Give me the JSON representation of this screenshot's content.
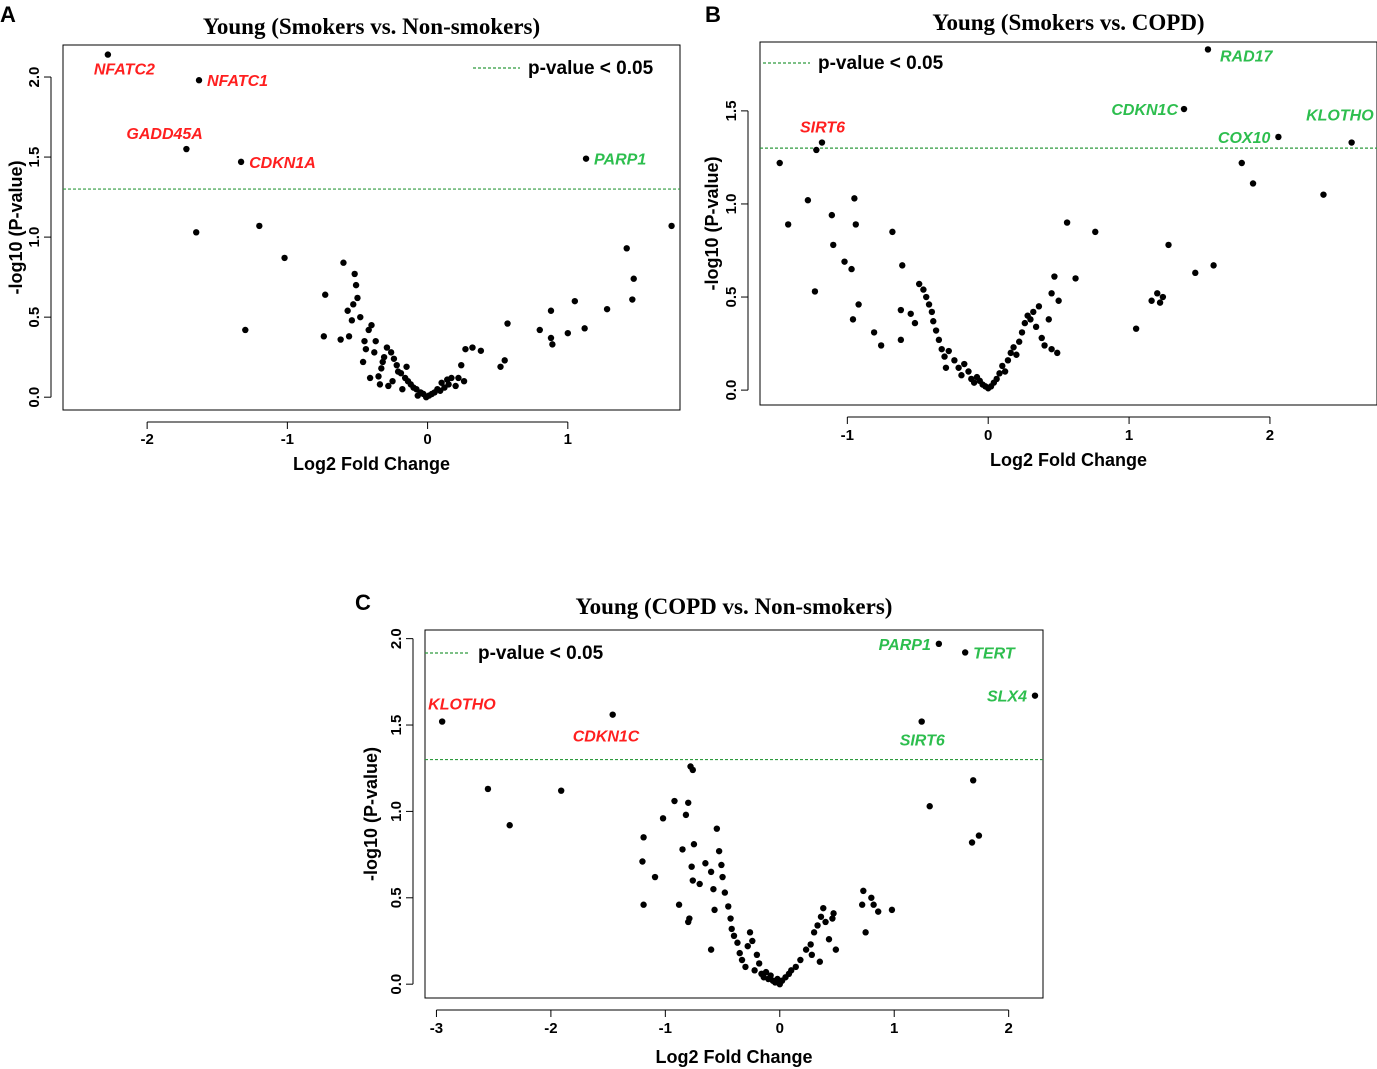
{
  "colors": {
    "down": "#ff1f1f",
    "up": "#2dbe4e",
    "threshold": "#2e9a3e",
    "point": "#000000",
    "frame": "#000000"
  },
  "chart_data": [
    {
      "panel": "A",
      "type": "scatter",
      "title": "Young (Smokers vs. Non-smokers)",
      "xlabel": "Log2 Fold Change",
      "ylabel": "-log10 (P-value)",
      "xticks": [
        "-2",
        "-1",
        "0",
        "1"
      ],
      "yticks": [
        "0.0",
        "0.5",
        "1.0",
        "1.5",
        "2.0"
      ],
      "xlim": [
        -2.6,
        1.8
      ],
      "ylim": [
        -0.08,
        2.2
      ],
      "threshold": 1.3,
      "legend": "p-value < 0.05",
      "legend_position": "top-right",
      "labels": [
        {
          "text": "NFATC2",
          "x": -2.28,
          "y": 2.14,
          "dir": "down"
        },
        {
          "text": "NFATC1",
          "x": -1.63,
          "y": 1.98,
          "dir": "down"
        },
        {
          "text": "GADD45A",
          "x": -1.72,
          "y": 1.55,
          "dir": "down"
        },
        {
          "text": "CDKN1A",
          "x": -1.33,
          "y": 1.47,
          "dir": "down"
        },
        {
          "text": "PARP1",
          "x": 1.13,
          "y": 1.49,
          "dir": "up"
        }
      ],
      "points": [
        [
          -2.28,
          2.14
        ],
        [
          -1.63,
          1.98
        ],
        [
          -1.72,
          1.55
        ],
        [
          -1.33,
          1.47
        ],
        [
          1.13,
          1.49
        ],
        [
          -1.65,
          1.03
        ],
        [
          -1.2,
          1.07
        ],
        [
          -1.02,
          0.87
        ],
        [
          -1.3,
          0.42
        ],
        [
          1.74,
          1.07
        ],
        [
          1.42,
          0.93
        ],
        [
          1.47,
          0.74
        ],
        [
          1.46,
          0.61
        ],
        [
          1.28,
          0.55
        ],
        [
          1.05,
          0.6
        ],
        [
          1.12,
          0.43
        ],
        [
          0.88,
          0.54
        ],
        [
          0.88,
          0.37
        ],
        [
          0.8,
          0.42
        ],
        [
          0.89,
          0.33
        ],
        [
          1.0,
          0.4
        ],
        [
          0.57,
          0.46
        ],
        [
          0.55,
          0.23
        ],
        [
          0.52,
          0.19
        ],
        [
          0.38,
          0.29
        ],
        [
          0.32,
          0.31
        ],
        [
          0.27,
          0.3
        ],
        [
          0.24,
          0.2
        ],
        [
          0.26,
          0.1
        ],
        [
          0.2,
          0.07
        ],
        [
          0.17,
          0.12
        ],
        [
          0.14,
          0.11
        ],
        [
          0.12,
          0.06
        ],
        [
          0.1,
          0.09
        ],
        [
          0.07,
          0.05
        ],
        [
          0.05,
          0.03
        ],
        [
          0.03,
          0.02
        ],
        [
          0.01,
          0.01
        ],
        [
          -0.01,
          0.0
        ],
        [
          -0.03,
          0.02
        ],
        [
          -0.05,
          0.03
        ],
        [
          -0.08,
          0.05
        ],
        [
          -0.1,
          0.06
        ],
        [
          -0.12,
          0.08
        ],
        [
          -0.14,
          0.1
        ],
        [
          -0.16,
          0.12
        ],
        [
          -0.19,
          0.15
        ],
        [
          -0.22,
          0.2
        ],
        [
          -0.24,
          0.24
        ],
        [
          -0.26,
          0.28
        ],
        [
          -0.29,
          0.31
        ],
        [
          -0.31,
          0.25
        ],
        [
          -0.33,
          0.18
        ],
        [
          -0.35,
          0.13
        ],
        [
          -0.37,
          0.35
        ],
        [
          -0.4,
          0.45
        ],
        [
          -0.42,
          0.42
        ],
        [
          -0.44,
          0.3
        ],
        [
          -0.46,
          0.22
        ],
        [
          -0.48,
          0.5
        ],
        [
          -0.5,
          0.62
        ],
        [
          -0.51,
          0.7
        ],
        [
          -0.52,
          0.77
        ],
        [
          -0.53,
          0.58
        ],
        [
          -0.54,
          0.48
        ],
        [
          -0.56,
          0.38
        ],
        [
          -0.6,
          0.84
        ],
        [
          -0.62,
          0.36
        ],
        [
          -0.73,
          0.64
        ],
        [
          -0.74,
          0.38
        ],
        [
          -0.41,
          0.12
        ],
        [
          -0.34,
          0.08
        ],
        [
          -0.25,
          0.1
        ],
        [
          -0.18,
          0.05
        ],
        [
          -0.28,
          0.07
        ],
        [
          -0.21,
          0.16
        ],
        [
          -0.15,
          0.19
        ],
        [
          -0.45,
          0.35
        ],
        [
          -0.38,
          0.28
        ],
        [
          -0.32,
          0.22
        ],
        [
          0.15,
          0.08
        ],
        [
          0.22,
          0.12
        ],
        [
          0.09,
          0.04
        ],
        [
          -0.07,
          0.01
        ],
        [
          -0.57,
          0.54
        ]
      ]
    },
    {
      "panel": "B",
      "type": "scatter",
      "title": "Young (Smokers vs. COPD)",
      "xlabel": "Log2 Fold Change",
      "ylabel": "-log10 (P-value)",
      "xticks": [
        "-1",
        "0",
        "1",
        "2"
      ],
      "yticks": [
        "0.0",
        "0.5",
        "1.0",
        "1.5"
      ],
      "xlim": [
        -1.62,
        2.76
      ],
      "ylim": [
        -0.08,
        1.87
      ],
      "threshold": 1.3,
      "legend": "p-value < 0.05",
      "legend_position": "top-left",
      "labels": [
        {
          "text": "SIRT6",
          "x": -1.18,
          "y": 1.33,
          "dir": "down"
        },
        {
          "text": "RAD17",
          "x": 1.56,
          "y": 1.83,
          "dir": "up"
        },
        {
          "text": "CDKN1C",
          "x": 1.39,
          "y": 1.51,
          "dir": "up"
        },
        {
          "text": "COX10",
          "x": 2.06,
          "y": 1.36,
          "dir": "up"
        },
        {
          "text": "KLOTHO",
          "x": 2.58,
          "y": 1.33,
          "dir": "up"
        }
      ],
      "points": [
        [
          -1.18,
          1.33
        ],
        [
          1.56,
          1.83
        ],
        [
          1.39,
          1.51
        ],
        [
          2.06,
          1.36
        ],
        [
          2.58,
          1.33
        ],
        [
          -1.22,
          1.29
        ],
        [
          -1.48,
          1.22
        ],
        [
          -1.42,
          0.89
        ],
        [
          -1.28,
          1.02
        ],
        [
          -1.23,
          0.53
        ],
        [
          -1.11,
          0.94
        ],
        [
          -1.1,
          0.78
        ],
        [
          -1.02,
          0.69
        ],
        [
          -0.97,
          0.65
        ],
        [
          -0.95,
          1.03
        ],
        [
          -0.94,
          0.89
        ],
        [
          -0.96,
          0.38
        ],
        [
          -0.92,
          0.46
        ],
        [
          -0.81,
          0.31
        ],
        [
          -0.76,
          0.24
        ],
        [
          -0.68,
          0.85
        ],
        [
          -0.61,
          0.67
        ],
        [
          -0.62,
          0.43
        ],
        [
          -0.62,
          0.27
        ],
        [
          -0.55,
          0.41
        ],
        [
          -0.52,
          0.36
        ],
        [
          -0.49,
          0.57
        ],
        [
          -0.46,
          0.54
        ],
        [
          -0.44,
          0.5
        ],
        [
          -0.42,
          0.46
        ],
        [
          -0.4,
          0.42
        ],
        [
          -0.39,
          0.37
        ],
        [
          -0.37,
          0.32
        ],
        [
          -0.35,
          0.27
        ],
        [
          -0.33,
          0.22
        ],
        [
          -0.31,
          0.18
        ],
        [
          -0.28,
          0.21
        ],
        [
          -0.3,
          0.12
        ],
        [
          -0.24,
          0.16
        ],
        [
          -0.21,
          0.12
        ],
        [
          -0.19,
          0.08
        ],
        [
          -0.17,
          0.14
        ],
        [
          -0.14,
          0.1
        ],
        [
          -0.12,
          0.06
        ],
        [
          -0.1,
          0.04
        ],
        [
          -0.08,
          0.07
        ],
        [
          -0.06,
          0.05
        ],
        [
          -0.04,
          0.03
        ],
        [
          -0.02,
          0.02
        ],
        [
          0.0,
          0.01
        ],
        [
          0.02,
          0.02
        ],
        [
          0.04,
          0.04
        ],
        [
          0.06,
          0.06
        ],
        [
          0.08,
          0.09
        ],
        [
          0.1,
          0.13
        ],
        [
          0.12,
          0.1
        ],
        [
          0.14,
          0.16
        ],
        [
          0.16,
          0.2
        ],
        [
          0.18,
          0.23
        ],
        [
          0.2,
          0.19
        ],
        [
          0.22,
          0.26
        ],
        [
          0.24,
          0.31
        ],
        [
          0.26,
          0.36
        ],
        [
          0.28,
          0.4
        ],
        [
          0.3,
          0.38
        ],
        [
          0.32,
          0.42
        ],
        [
          0.34,
          0.34
        ],
        [
          0.36,
          0.45
        ],
        [
          0.38,
          0.28
        ],
        [
          0.4,
          0.24
        ],
        [
          0.43,
          0.38
        ],
        [
          0.45,
          0.52
        ],
        [
          0.47,
          0.61
        ],
        [
          0.5,
          0.48
        ],
        [
          0.45,
          0.22
        ],
        [
          0.49,
          0.2
        ],
        [
          0.56,
          0.9
        ],
        [
          0.62,
          0.6
        ],
        [
          0.76,
          0.85
        ],
        [
          1.05,
          0.33
        ],
        [
          1.16,
          0.48
        ],
        [
          1.2,
          0.52
        ],
        [
          1.24,
          0.5
        ],
        [
          1.28,
          0.78
        ],
        [
          1.47,
          0.63
        ],
        [
          1.6,
          0.67
        ],
        [
          1.8,
          1.22
        ],
        [
          1.88,
          1.11
        ],
        [
          2.38,
          1.05
        ],
        [
          1.22,
          0.47
        ]
      ]
    },
    {
      "panel": "C",
      "type": "scatter",
      "title": "Young (COPD vs. Non-smokers)",
      "xlabel": "Log2 Fold Change",
      "ylabel": "-log10 (P-value)",
      "xticks": [
        "-3",
        "-2",
        "-1",
        "0",
        "1",
        "2"
      ],
      "yticks": [
        "0.0",
        "0.5",
        "1.0",
        "1.5",
        "2.0"
      ],
      "xlim": [
        -3.1,
        2.3
      ],
      "ylim": [
        -0.08,
        2.05
      ],
      "threshold": 1.3,
      "legend": "p-value < 0.05",
      "legend_position": "top-left",
      "labels": [
        {
          "text": "KLOTHO",
          "x": -2.95,
          "y": 1.52,
          "dir": "down"
        },
        {
          "text": "CDKN1C",
          "x": -1.46,
          "y": 1.56,
          "dir": "down"
        },
        {
          "text": "PARP1",
          "x": 1.39,
          "y": 1.97,
          "dir": "up"
        },
        {
          "text": "TERT",
          "x": 1.62,
          "y": 1.92,
          "dir": "up"
        },
        {
          "text": "SLX4",
          "x": 2.23,
          "y": 1.67,
          "dir": "up"
        },
        {
          "text": "SIRT6",
          "x": 1.24,
          "y": 1.52,
          "dir": "up"
        }
      ],
      "points": [
        [
          -2.95,
          1.52
        ],
        [
          -1.46,
          1.56
        ],
        [
          1.39,
          1.97
        ],
        [
          1.62,
          1.92
        ],
        [
          2.23,
          1.67
        ],
        [
          1.24,
          1.52
        ],
        [
          -2.55,
          1.13
        ],
        [
          -2.36,
          0.92
        ],
        [
          -1.91,
          1.12
        ],
        [
          -1.19,
          0.85
        ],
        [
          -1.2,
          0.71
        ],
        [
          -1.19,
          0.46
        ],
        [
          -1.09,
          0.62
        ],
        [
          -1.02,
          0.96
        ],
        [
          -0.92,
          1.06
        ],
        [
          -0.85,
          0.78
        ],
        [
          -0.82,
          0.98
        ],
        [
          -0.8,
          1.05
        ],
        [
          -0.78,
          1.26
        ],
        [
          -0.76,
          1.24
        ],
        [
          -0.75,
          0.81
        ],
        [
          -0.77,
          0.68
        ],
        [
          -0.76,
          0.6
        ],
        [
          -0.79,
          0.38
        ],
        [
          -0.8,
          0.36
        ],
        [
          -0.7,
          0.58
        ],
        [
          -0.65,
          0.7
        ],
        [
          -0.6,
          0.65
        ],
        [
          -0.58,
          0.55
        ],
        [
          -0.57,
          0.43
        ],
        [
          -0.55,
          0.9
        ],
        [
          -0.53,
          0.77
        ],
        [
          -0.51,
          0.69
        ],
        [
          -0.5,
          0.62
        ],
        [
          -0.48,
          0.53
        ],
        [
          -0.45,
          0.45
        ],
        [
          -0.43,
          0.38
        ],
        [
          -0.42,
          0.32
        ],
        [
          -0.4,
          0.28
        ],
        [
          -0.37,
          0.24
        ],
        [
          -0.35,
          0.18
        ],
        [
          -0.33,
          0.14
        ],
        [
          -0.3,
          0.1
        ],
        [
          -0.28,
          0.22
        ],
        [
          -0.26,
          0.3
        ],
        [
          -0.24,
          0.25
        ],
        [
          -0.22,
          0.08
        ],
        [
          -0.2,
          0.17
        ],
        [
          -0.18,
          0.12
        ],
        [
          -0.16,
          0.06
        ],
        [
          -0.14,
          0.04
        ],
        [
          -0.12,
          0.07
        ],
        [
          -0.1,
          0.03
        ],
        [
          -0.08,
          0.05
        ],
        [
          -0.06,
          0.02
        ],
        [
          -0.04,
          0.01
        ],
        [
          -0.02,
          0.03
        ],
        [
          0.0,
          0.0
        ],
        [
          0.02,
          0.02
        ],
        [
          0.05,
          0.04
        ],
        [
          0.08,
          0.06
        ],
        [
          0.1,
          0.08
        ],
        [
          0.14,
          0.1
        ],
        [
          0.18,
          0.14
        ],
        [
          0.23,
          0.2
        ],
        [
          0.27,
          0.23
        ],
        [
          0.3,
          0.3
        ],
        [
          0.33,
          0.34
        ],
        [
          0.36,
          0.39
        ],
        [
          0.38,
          0.44
        ],
        [
          0.4,
          0.36
        ],
        [
          0.43,
          0.26
        ],
        [
          0.46,
          0.38
        ],
        [
          0.47,
          0.41
        ],
        [
          0.49,
          0.2
        ],
        [
          0.35,
          0.13
        ],
        [
          0.28,
          0.17
        ],
        [
          0.72,
          0.46
        ],
        [
          0.75,
          0.3
        ],
        [
          0.8,
          0.5
        ],
        [
          0.82,
          0.46
        ],
        [
          0.86,
          0.42
        ],
        [
          0.98,
          0.43
        ],
        [
          1.31,
          1.03
        ],
        [
          1.69,
          1.18
        ],
        [
          1.68,
          0.82
        ],
        [
          1.74,
          0.86
        ],
        [
          -0.6,
          0.2
        ],
        [
          0.73,
          0.54
        ],
        [
          -0.88,
          0.46
        ]
      ]
    }
  ],
  "panels": [
    {
      "letter": "A"
    },
    {
      "letter": "B"
    },
    {
      "letter": "C"
    }
  ]
}
